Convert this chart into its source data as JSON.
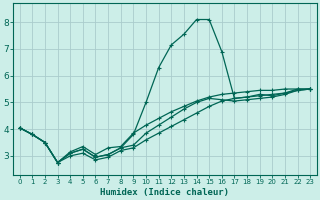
{
  "xlabel": "Humidex (Indice chaleur)",
  "xlim": [
    -0.5,
    23.5
  ],
  "ylim": [
    2.3,
    8.7
  ],
  "xticks": [
    0,
    1,
    2,
    3,
    4,
    5,
    6,
    7,
    8,
    9,
    10,
    11,
    12,
    13,
    14,
    15,
    16,
    17,
    18,
    19,
    20,
    21,
    22,
    23
  ],
  "yticks": [
    3,
    4,
    5,
    6,
    7,
    8
  ],
  "bg_color": "#cceee8",
  "grid_color": "#aacccc",
  "line_color": "#006655",
  "lines": [
    {
      "x": [
        0,
        1,
        2,
        3,
        4,
        5,
        6,
        7,
        8,
        9,
        10,
        11,
        12,
        13,
        14,
        15,
        16,
        17,
        18,
        19,
        20,
        21,
        22,
        23
      ],
      "y": [
        4.05,
        3.8,
        3.5,
        2.75,
        3.1,
        3.25,
        2.95,
        3.05,
        3.3,
        3.4,
        3.85,
        4.15,
        4.45,
        4.75,
        5.0,
        5.15,
        5.1,
        5.05,
        5.1,
        5.15,
        5.2,
        5.3,
        5.45,
        5.5
      ]
    },
    {
      "x": [
        0,
        1,
        2,
        3,
        4,
        5,
        6,
        7,
        8,
        9,
        10,
        11,
        12,
        13,
        14,
        15,
        16,
        17,
        18,
        19,
        20,
        21,
        22,
        23
      ],
      "y": [
        4.05,
        3.8,
        3.5,
        2.75,
        3.1,
        3.25,
        2.95,
        3.05,
        3.3,
        3.8,
        5.0,
        6.3,
        7.15,
        7.55,
        8.1,
        8.1,
        6.9,
        5.15,
        5.2,
        5.3,
        5.25,
        5.35,
        5.5,
        5.5
      ]
    },
    {
      "x": [
        0,
        1,
        2,
        3,
        4,
        5,
        6,
        7,
        8,
        9,
        10,
        11,
        12,
        13,
        14,
        15,
        16,
        17,
        18,
        19,
        20,
        21,
        22,
        23
      ],
      "y": [
        4.05,
        3.8,
        3.5,
        2.75,
        3.15,
        3.35,
        3.05,
        3.3,
        3.35,
        3.85,
        4.15,
        4.4,
        4.65,
        4.85,
        5.05,
        5.2,
        5.3,
        5.35,
        5.4,
        5.45,
        5.45,
        5.5,
        5.5,
        5.5
      ]
    },
    {
      "x": [
        0,
        1,
        2,
        3,
        4,
        5,
        6,
        7,
        8,
        9,
        10,
        11,
        12,
        13,
        14,
        15,
        16,
        17,
        18,
        19,
        20,
        21,
        22,
        23
      ],
      "y": [
        4.05,
        3.8,
        3.5,
        2.75,
        3.0,
        3.1,
        2.85,
        2.95,
        3.2,
        3.3,
        3.6,
        3.85,
        4.1,
        4.35,
        4.6,
        4.85,
        5.05,
        5.15,
        5.2,
        5.25,
        5.3,
        5.35,
        5.45,
        5.5
      ]
    }
  ]
}
